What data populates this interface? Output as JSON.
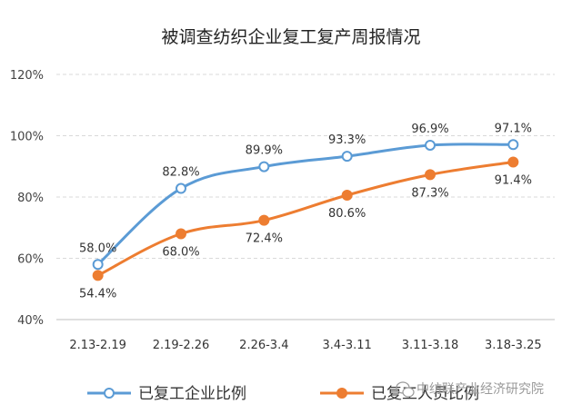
{
  "chart_data": {
    "type": "line",
    "title": "被调查纺织企业复工复产周报情况",
    "categories": [
      "2.13-2.19",
      "2.19-2.26",
      "2.26-3.4",
      "3.4-3.11",
      "3.11-3.18",
      "3.18-3.25"
    ],
    "y_ticks": [
      "40%",
      "60%",
      "80%",
      "100%",
      "120%"
    ],
    "ylim": [
      40,
      120
    ],
    "grid": true,
    "legend_position": "bottom",
    "series": [
      {
        "name": "已复工企业比例",
        "color": "#5B9BD5",
        "marker": "hollow-circle",
        "values": [
          58.0,
          82.8,
          89.9,
          93.3,
          96.9,
          97.1
        ],
        "labels": [
          "58.0%",
          "82.8%",
          "89.9%",
          "93.3%",
          "96.9%",
          "97.1%"
        ]
      },
      {
        "name": "已复工人员比例",
        "color": "#ED7D31",
        "marker": "filled-circle",
        "values": [
          54.4,
          68.0,
          72.4,
          80.6,
          87.3,
          91.4
        ],
        "labels": [
          "54.4%",
          "68.0%",
          "72.4%",
          "80.6%",
          "87.3%",
          "91.4%"
        ]
      }
    ]
  },
  "watermark": {
    "text": "中纺联产业经济研究院",
    "icon": "wechat-icon",
    "color": "#9a9a9a"
  }
}
